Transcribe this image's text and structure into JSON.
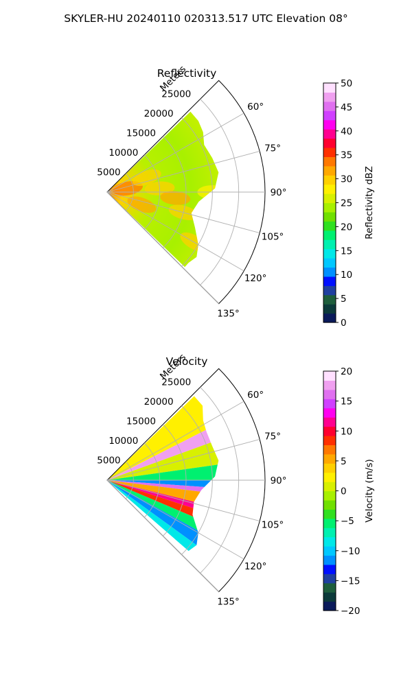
{
  "suptitle": "SKYLER-HU  20240110  020313.517 UTC Elevation 08°",
  "range_label": "Meters",
  "chart_data": [
    {
      "type": "heatmap",
      "subtype": "polar-sector-ppi",
      "title": "Reflectivity",
      "field": "reflectivity",
      "theta_range_deg": [
        45,
        135
      ],
      "r_max_m": 30000,
      "range_ticks": [
        5000,
        10000,
        15000,
        20000,
        25000
      ],
      "range_tick_labels": [
        "5000",
        "10000",
        "15000",
        "20000",
        "25000"
      ],
      "angle_ticks": [
        60,
        75,
        90,
        105,
        120,
        135
      ],
      "angle_tick_labels": [
        "60°",
        "75°",
        "90°",
        "105°",
        "120°",
        "135°"
      ],
      "grid": true,
      "colorbar": {
        "label": "Reflectivity dBZ",
        "vmin": 0,
        "vmax": 50,
        "ticks": [
          0,
          5,
          10,
          15,
          20,
          25,
          30,
          35,
          40,
          45,
          50
        ],
        "tick_labels": [
          "0",
          "5",
          "10",
          "15",
          "20",
          "25",
          "30",
          "35",
          "40",
          "45",
          "50"
        ],
        "colors": [
          "#0a1a5a",
          "#0c3a3a",
          "#1e5e3c",
          "#2040a0",
          "#0010ff",
          "#0090ff",
          "#00c8ff",
          "#00e8e8",
          "#00f0b0",
          "#00f070",
          "#30e020",
          "#70e000",
          "#a8f000",
          "#d8f000",
          "#fff000",
          "#ffd000",
          "#ffa800",
          "#ff7800",
          "#ff3000",
          "#ff0030",
          "#ff0090",
          "#ff00f0",
          "#d040ff",
          "#e070f0",
          "#f0a0f0",
          "#ffe0ff"
        ]
      },
      "data_summary": "Sector echoes out to about 24000 m, mostly 15–30 dBZ with local 30–35 dBZ near the radar and scattered cores.",
      "sector_fill_stops": [
        {
          "r": 0,
          "color": "#ff8000"
        },
        {
          "r": 3000,
          "color": "#ffd000"
        },
        {
          "r": 9000,
          "color": "#b8f000"
        },
        {
          "r": 16000,
          "color": "#a8f000"
        },
        {
          "r": 23000,
          "color": "#c8f000"
        }
      ],
      "cores": [
        {
          "theta": 80,
          "r": 4000,
          "value": 33
        },
        {
          "theta": 86,
          "r": 10000,
          "value": 30
        },
        {
          "theta": 95,
          "r": 13000,
          "value": 32
        },
        {
          "theta": 105,
          "r": 15000,
          "value": 30
        },
        {
          "theta": 120,
          "r": 19000,
          "value": 29
        },
        {
          "theta": 70,
          "r": 8000,
          "value": 29
        },
        {
          "theta": 90,
          "r": 20000,
          "value": 28
        },
        {
          "theta": 110,
          "r": 7000,
          "value": 31
        }
      ],
      "outer_edge": [
        {
          "theta": 52,
          "r": 22000
        },
        {
          "theta": 58,
          "r": 21500
        },
        {
          "theta": 64,
          "r": 20500
        },
        {
          "theta": 72,
          "r": 21000
        },
        {
          "theta": 80,
          "r": 21500
        },
        {
          "theta": 88,
          "r": 20500
        },
        {
          "theta": 96,
          "r": 17500
        },
        {
          "theta": 104,
          "r": 16500
        },
        {
          "theta": 112,
          "r": 18000
        },
        {
          "theta": 120,
          "r": 20000
        },
        {
          "theta": 126,
          "r": 21000
        },
        {
          "theta": 131,
          "r": 20500
        }
      ]
    },
    {
      "type": "heatmap",
      "subtype": "polar-sector-ppi",
      "title": "Velocity",
      "field": "velocity",
      "theta_range_deg": [
        45,
        135
      ],
      "r_max_m": 30000,
      "range_ticks": [
        5000,
        10000,
        15000,
        20000,
        25000
      ],
      "range_tick_labels": [
        "5000",
        "10000",
        "15000",
        "20000",
        "25000"
      ],
      "angle_ticks": [
        60,
        75,
        90,
        105,
        120,
        135
      ],
      "angle_tick_labels": [
        "60°",
        "75°",
        "90°",
        "105°",
        "120°",
        "135°"
      ],
      "grid": true,
      "colorbar": {
        "label": "Velocity (m/s)",
        "vmin": -20,
        "vmax": 20,
        "ticks": [
          -20,
          -15,
          -10,
          -5,
          0,
          5,
          10,
          15,
          20
        ],
        "tick_labels": [
          "−20",
          "−15",
          "−10",
          "−5",
          "0",
          "5",
          "10",
          "15",
          "20"
        ],
        "colors": [
          "#0a1a5a",
          "#0c3a3a",
          "#1e5e3c",
          "#2040a0",
          "#0010ff",
          "#0090ff",
          "#00c8ff",
          "#00e8e8",
          "#00f0b0",
          "#00f070",
          "#30e020",
          "#70e000",
          "#a8f000",
          "#d8f000",
          "#fff000",
          "#ffd000",
          "#ffa800",
          "#ff7800",
          "#ff3000",
          "#ff0030",
          "#ff0090",
          "#ff00f0",
          "#d040ff",
          "#e070f0",
          "#f0a0f0",
          "#ffe0ff"
        ]
      },
      "data_summary": "Outbound (positive, yellow–magenta) velocities north of ~90° and in a band near 100°; inbound (negative, green–cyan) velocities near 85–95° and toward 115–130°.",
      "bands": [
        {
          "theta_start": 45,
          "theta_end": 63,
          "value": 2
        },
        {
          "theta_start": 63,
          "theta_end": 70,
          "value": 18
        },
        {
          "theta_start": 70,
          "theta_end": 82,
          "value": 1
        },
        {
          "theta_start": 82,
          "theta_end": 90,
          "value": -6
        },
        {
          "theta_start": 90,
          "theta_end": 94,
          "value": -11
        },
        {
          "theta_start": 94,
          "theta_end": 97,
          "value": 16
        },
        {
          "theta_start": 97,
          "theta_end": 104,
          "value": 5
        },
        {
          "theta_start": 104,
          "theta_end": 108,
          "value": 11
        },
        {
          "theta_start": 108,
          "theta_end": 113,
          "value": 8
        },
        {
          "theta_start": 113,
          "theta_end": 119,
          "value": -6
        },
        {
          "theta_start": 119,
          "theta_end": 126,
          "value": -11
        },
        {
          "theta_start": 126,
          "theta_end": 131,
          "value": -8
        }
      ],
      "outer_edge": [
        {
          "theta": 52,
          "r": 23000
        },
        {
          "theta": 58,
          "r": 21500
        },
        {
          "theta": 64,
          "r": 21000
        },
        {
          "theta": 72,
          "r": 21000
        },
        {
          "theta": 80,
          "r": 21500
        },
        {
          "theta": 88,
          "r": 20500
        },
        {
          "theta": 96,
          "r": 18000
        },
        {
          "theta": 104,
          "r": 17000
        },
        {
          "theta": 112,
          "r": 17500
        },
        {
          "theta": 120,
          "r": 20000
        },
        {
          "theta": 126,
          "r": 21000
        },
        {
          "theta": 131,
          "r": 20500
        }
      ]
    }
  ]
}
